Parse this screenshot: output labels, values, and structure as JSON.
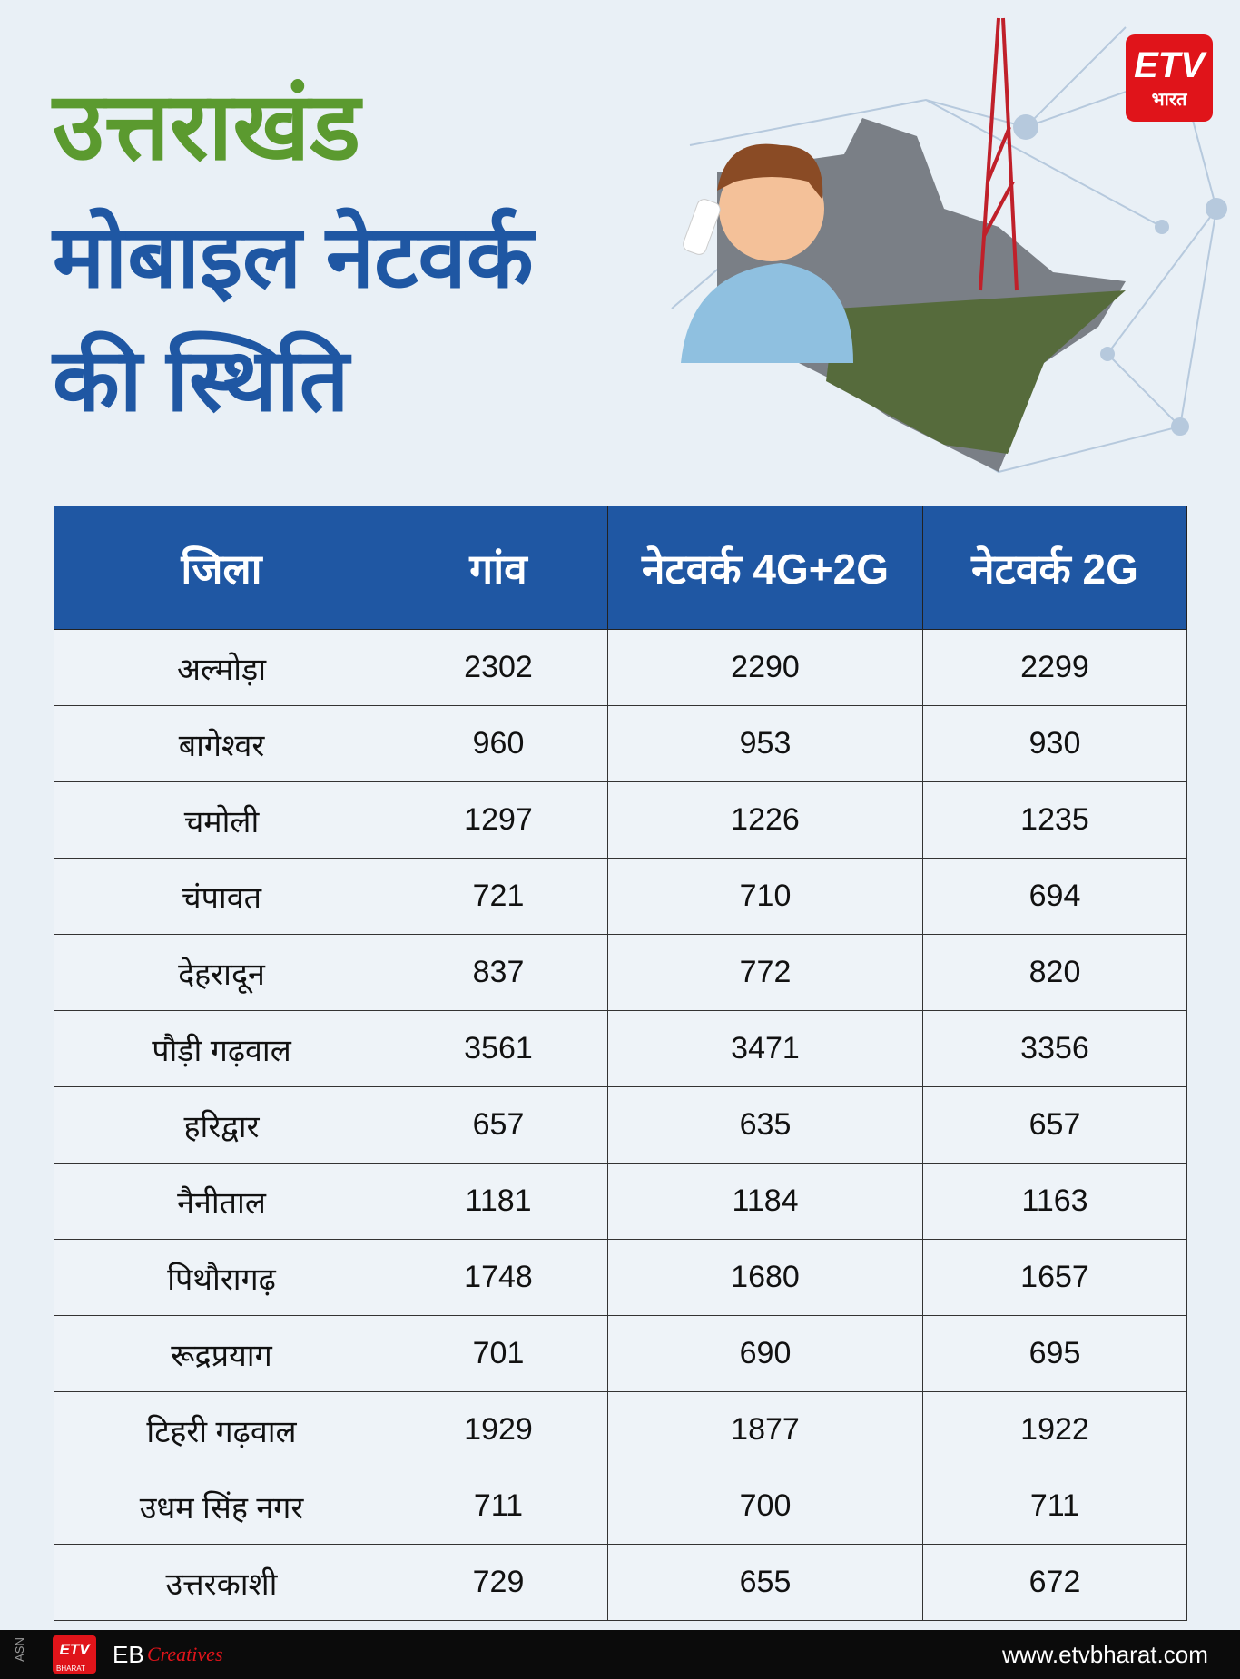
{
  "header": {
    "title_lines": [
      "उत्तराखंड",
      "मोबाइल नेटवर्क",
      "की स्थिति"
    ],
    "logo": {
      "mark": "ETV",
      "name": "भारत"
    }
  },
  "table": {
    "columns": [
      "जिला",
      "गांव",
      "नेटवर्क 4G+2G",
      "नेटवर्क 2G"
    ],
    "rows": [
      [
        "अल्मोड़ा",
        2302,
        2290,
        2299
      ],
      [
        "बागेश्वर",
        960,
        953,
        930
      ],
      [
        "चमोली",
        1297,
        1226,
        1235
      ],
      [
        "चंपावत",
        721,
        710,
        694
      ],
      [
        "देहरादून",
        837,
        772,
        820
      ],
      [
        "पौड़ी गढ़वाल",
        3561,
        3471,
        3356
      ],
      [
        "हरिद्वार",
        657,
        635,
        657
      ],
      [
        "नैनीताल",
        1181,
        1184,
        1163
      ],
      [
        "पिथौरागढ़",
        1748,
        1680,
        1657
      ],
      [
        "रूद्रप्रयाग",
        701,
        690,
        695
      ],
      [
        "टिहरी गढ़वाल",
        1929,
        1877,
        1922
      ],
      [
        "उधम सिंह नगर",
        711,
        700,
        711
      ],
      [
        "उत्तरकाशी",
        729,
        655,
        672
      ]
    ]
  },
  "footer": {
    "code": "ASN",
    "logo_mark": "ETV",
    "logo_name": "BHARAT",
    "brand": "EB",
    "brand_script": "Creatives",
    "website": "www.etvbharat.com"
  }
}
